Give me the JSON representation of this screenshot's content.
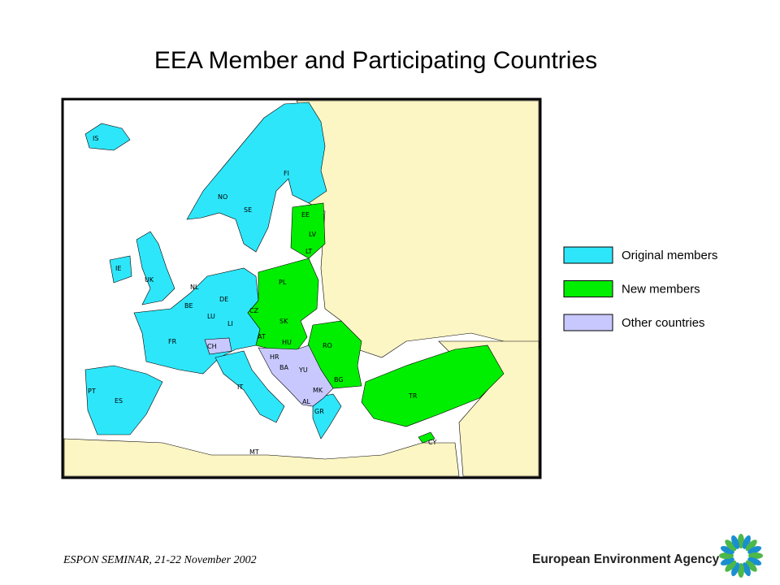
{
  "title": "EEA Member and Participating Countries",
  "map": {
    "labels": [
      "IS",
      "NO",
      "SE",
      "FI",
      "EE",
      "LV",
      "LT",
      "IE",
      "UK",
      "NL",
      "BE",
      "LU",
      "DE",
      "LI",
      "PL",
      "CZ",
      "SK",
      "AT",
      "HU",
      "CH",
      "FR",
      "RO",
      "HR",
      "BA",
      "YU",
      "BG",
      "MK",
      "AL",
      "GR",
      "TR",
      "PT",
      "ES",
      "IT",
      "MT",
      "CY"
    ]
  },
  "legend": [
    {
      "label": "Original members",
      "color": "#2ee6fa"
    },
    {
      "label": "New members",
      "color": "#00ee00"
    },
    {
      "label": "Other countries",
      "color": "#c8c8ff"
    }
  ],
  "footer": "ESPON SEMINAR, 21-22 November 2002",
  "logo": "European Environment Agency"
}
